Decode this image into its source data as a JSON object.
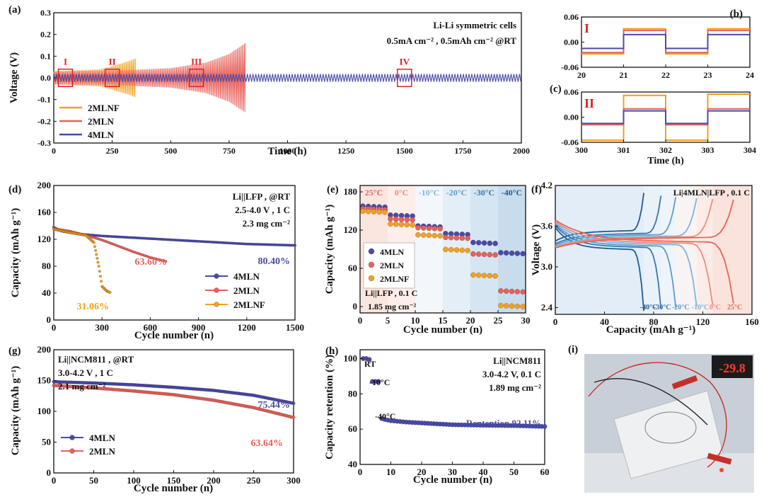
{
  "colors": {
    "mln4": "#4a4aa8",
    "mln2": "#e8605a",
    "mlnf": "#f3a020",
    "box": "#e02020",
    "t25": "#e86458",
    "t0": "#ef8a78",
    "tm10": "#7fb4dc",
    "tm20": "#5b9ccb",
    "tm30": "#3877ad",
    "tm40": "#1f5c92"
  },
  "panels": {
    "a": {
      "tag": "(a)",
      "annotation1": "Li-Li symmetric cells",
      "annotation2": "0.5mA cm⁻² ,  0.5mAh cm⁻² @RT",
      "boxes": [
        "I",
        "II",
        "III",
        "IV"
      ],
      "legend": [
        "2MLNF",
        "2MLN",
        "4MLN"
      ],
      "xlabel": "Time (h)",
      "ylabel": "Voltage (V)",
      "xticks": [
        "0",
        "250",
        "500",
        "750",
        "1000",
        "1250",
        "1500",
        "1750",
        "2000"
      ],
      "yticks": [
        "0.3",
        "0.2",
        "0.1",
        "0.0",
        "-0.1",
        "-0.2",
        "-0.3"
      ]
    },
    "b": {
      "tag": "(b)",
      "roman": "I",
      "xticks": [
        "20",
        "21",
        "22",
        "23",
        "24"
      ],
      "yticks": [
        "0.06",
        "0.00",
        "-0.06"
      ]
    },
    "c": {
      "tag": "(c)",
      "roman": "II",
      "xticks": [
        "300",
        "301",
        "302",
        "303",
        "304"
      ],
      "yticks": [
        "0.06",
        "0.00",
        "-0.06"
      ],
      "xlabel": "Time (h)"
    },
    "d": {
      "tag": "(d)",
      "annotation1": "Li||LFP , @RT",
      "annotation2": "2.5-4.0 V , 1 C",
      "annotation3": "2.3 mg cm⁻²",
      "ret_4mln": "80.40%",
      "ret_2mln": "63.60%",
      "ret_2mlnf": "31.06%",
      "legend": [
        "4MLN",
        "2MLN",
        "2MLNF"
      ],
      "xlabel": "Cycle number (n)",
      "ylabel": "Capacity (mAh g⁻¹)",
      "xticks": [
        "0",
        "300",
        "600",
        "900",
        "1200",
        "1500"
      ],
      "yticks": [
        "200",
        "160",
        "120",
        "80",
        "40",
        "0"
      ]
    },
    "e": {
      "tag": "(e)",
      "temps": [
        "25°C",
        "0°C",
        "-10°C",
        "-20°C",
        "-30°C",
        "-40°C"
      ],
      "legend": [
        "4MLN",
        "2MLN",
        "2MLNF"
      ],
      "annotation1": "Li||LFP , 0.1 C",
      "annotation2": "1.85 mg cm⁻²",
      "xlabel": "Cycle number (n)",
      "ylabel": "Capacity (mAh g⁻¹)",
      "xticks": [
        "0",
        "5",
        "10",
        "15",
        "20",
        "25",
        "30"
      ],
      "yticks": [
        "180",
        "120",
        "60",
        "0"
      ]
    },
    "f": {
      "tag": "(f)",
      "annotation": "Li|4MLN|LFP , 0.1 C",
      "temps": [
        "-40°C",
        "-30°C",
        "-20°C",
        "-10°C",
        "0°C",
        "25°C"
      ],
      "xlabel": "Capacity (mAh g⁻¹)",
      "ylabel": "Voltage (V)",
      "xticks": [
        "0",
        "40",
        "80",
        "120",
        "160"
      ],
      "yticks": [
        "4.2",
        "3.6",
        "3.0",
        "2.4"
      ]
    },
    "g": {
      "tag": "(g)",
      "annotation1": "Li||NCM811 , @RT",
      "annotation2": "3.0-4.2 V , 1 C",
      "annotation3": "2.1 mg cm⁻²",
      "ret_4mln": "75.44%",
      "ret_2mln": "63.64%",
      "legend": [
        "4MLN",
        "2MLN"
      ],
      "xlabel": "Cycle number (n)",
      "ylabel": "Capacity (mAh g⁻¹)",
      "xticks": [
        "0",
        "50",
        "100",
        "150",
        "200",
        "250",
        "300"
      ],
      "yticks": [
        "200",
        "150",
        "100",
        "50",
        "0"
      ]
    },
    "h": {
      "tag": "(h)",
      "annotation1": "Li||NCM811",
      "annotation2": "3.0-4.2 V, 0.1 C",
      "annotation3": "1.89 mg cm⁻²",
      "temp_rt": "RT",
      "temp_m10": "-10°C",
      "temp_m40": "-40°C",
      "retention": "Rentention 92.11%",
      "xlabel": "Cycle number (n)",
      "ylabel": "Capacity retention (%)",
      "xticks": [
        "0",
        "10",
        "20",
        "30",
        "40",
        "50",
        "60"
      ],
      "yticks": [
        "100",
        "80",
        "60",
        "40"
      ]
    },
    "i": {
      "tag": "(i)",
      "display": "-29.8"
    }
  },
  "chart_data": [
    {
      "panel": "a",
      "type": "line",
      "xlabel": "Time (h)",
      "ylabel": "Voltage (V)",
      "xlim": [
        0,
        2000
      ],
      "ylim": [
        -0.3,
        0.3
      ],
      "series": [
        {
          "name": "4MLN",
          "x": [
            0,
            2000
          ],
          "amplitude": [
            0.018,
            0.018
          ]
        },
        {
          "name": "2MLN",
          "x": [
            0,
            300,
            500,
            650,
            750,
            820
          ],
          "amplitude": [
            0.03,
            0.035,
            0.045,
            0.07,
            0.11,
            0.16
          ]
        },
        {
          "name": "2MLNF",
          "x": [
            0,
            200,
            300,
            350
          ],
          "amplitude": [
            0.03,
            0.04,
            0.07,
            0.09
          ]
        }
      ]
    },
    {
      "panel": "b",
      "type": "line",
      "xlim": [
        20,
        24
      ],
      "ylim": [
        -0.06,
        0.06
      ],
      "series": [
        {
          "name": "4MLN",
          "x": [
            20,
            21,
            21,
            22,
            22,
            23,
            23,
            24
          ],
          "y": [
            -0.015,
            -0.015,
            0.018,
            0.018,
            -0.015,
            -0.015,
            0.018,
            0.018
          ]
        },
        {
          "name": "2MLN",
          "x": [
            20,
            21,
            21,
            22,
            22,
            23,
            23,
            24
          ],
          "y": [
            -0.025,
            -0.025,
            0.028,
            0.028,
            -0.025,
            -0.025,
            0.028,
            0.028
          ]
        },
        {
          "name": "2MLNF",
          "x": [
            20,
            21,
            21,
            22,
            22,
            23,
            23,
            24
          ],
          "y": [
            -0.028,
            -0.028,
            0.032,
            0.032,
            -0.028,
            -0.028,
            0.032,
            0.032
          ]
        }
      ]
    },
    {
      "panel": "c",
      "type": "line",
      "xlim": [
        300,
        304
      ],
      "ylim": [
        -0.06,
        0.06
      ],
      "series": [
        {
          "name": "4MLN",
          "x": [
            300,
            301,
            301,
            302,
            302,
            303,
            303,
            304
          ],
          "y": [
            -0.015,
            -0.015,
            0.015,
            0.015,
            -0.015,
            -0.015,
            0.015,
            0.015
          ]
        },
        {
          "name": "2MLN",
          "x": [
            300,
            301,
            301,
            302,
            302,
            303,
            303,
            304
          ],
          "y": [
            -0.018,
            -0.018,
            0.02,
            0.02,
            -0.018,
            -0.018,
            0.02,
            0.02
          ]
        },
        {
          "name": "2MLNF",
          "x": [
            300,
            301,
            301,
            302,
            302,
            303,
            303,
            304
          ],
          "y": [
            -0.055,
            -0.055,
            0.052,
            0.052,
            -0.055,
            -0.055,
            0.055,
            0.055
          ]
        }
      ]
    },
    {
      "panel": "d",
      "type": "scatter",
      "xlabel": "Cycle number (n)",
      "ylabel": "Capacity (mAh g⁻¹)",
      "xlim": [
        0,
        1500
      ],
      "ylim": [
        0,
        200
      ],
      "series": [
        {
          "name": "4MLN",
          "x": [
            0,
            50,
            150,
            300,
            450,
            600,
            750,
            900,
            1050,
            1200,
            1350,
            1500
          ],
          "y": [
            138,
            132,
            128,
            125,
            123,
            121,
            119,
            117,
            115,
            113,
            112,
            111
          ]
        },
        {
          "name": "2MLN",
          "x": [
            0,
            100,
            200,
            300,
            400,
            500,
            600,
            700
          ],
          "y": [
            136,
            132,
            126,
            119,
            110,
            101,
            93,
            87
          ]
        },
        {
          "name": "2MLNF",
          "x": [
            0,
            100,
            200,
            250,
            280,
            300,
            330,
            350
          ],
          "y": [
            135,
            130,
            126,
            115,
            80,
            50,
            43,
            41
          ]
        }
      ]
    },
    {
      "panel": "e",
      "type": "scatter",
      "xlabel": "Cycle number (n)",
      "ylabel": "Capacity (mAh g⁻¹)",
      "xlim": [
        0,
        30
      ],
      "ylim": [
        -10,
        190
      ],
      "categories": [
        "25°C",
        "0°C",
        "-10°C",
        "-20°C",
        "-30°C",
        "-40°C"
      ],
      "series": [
        {
          "name": "4MLN",
          "values": [
            158,
            144,
            127,
            115,
            101,
            85
          ]
        },
        {
          "name": "2MLN",
          "values": [
            154,
            138,
            124,
            109,
            83,
            25
          ]
        },
        {
          "name": "2MLNF",
          "values": [
            150,
            130,
            113,
            90,
            50,
            2
          ]
        }
      ]
    },
    {
      "panel": "f",
      "type": "line",
      "xlabel": "Capacity (mAh g⁻¹)",
      "ylabel": "Voltage (V)",
      "xlim": [
        0,
        160
      ],
      "ylim": [
        2.3,
        4.2
      ],
      "series": [
        {
          "name": "-40°C",
          "capacity": 72
        },
        {
          "name": "-30°C",
          "capacity": 86
        },
        {
          "name": "-20°C",
          "capacity": 98
        },
        {
          "name": "-10°C",
          "capacity": 115
        },
        {
          "name": "0°C",
          "capacity": 128
        },
        {
          "name": "25°C",
          "capacity": 145
        }
      ]
    },
    {
      "panel": "g",
      "type": "scatter",
      "xlabel": "Cycle number (n)",
      "ylabel": "Capacity (mAh g⁻¹)",
      "xlim": [
        0,
        300
      ],
      "ylim": [
        0,
        200
      ],
      "series": [
        {
          "name": "4MLN",
          "x": [
            0,
            50,
            100,
            150,
            200,
            250,
            300
          ],
          "y": [
            148,
            146,
            143,
            139,
            134,
            126,
            113
          ]
        },
        {
          "name": "2MLN",
          "x": [
            0,
            50,
            100,
            150,
            200,
            250,
            300
          ],
          "y": [
            142,
            138,
            133,
            127,
            118,
            106,
            90
          ]
        }
      ]
    },
    {
      "panel": "h",
      "type": "scatter",
      "xlabel": "Cycle number (n)",
      "ylabel": "Capacity retention (%)",
      "xlim": [
        0,
        60
      ],
      "ylim": [
        40,
        105
      ],
      "series": [
        {
          "name": "",
          "x": [
            1,
            2,
            3,
            4,
            5,
            6,
            7,
            8,
            10,
            15,
            20,
            30,
            40,
            50,
            60
          ],
          "y": [
            100,
            100,
            99.5,
            87,
            87,
            87,
            66,
            65.5,
            64.8,
            64,
            63.5,
            62.5,
            62.2,
            62,
            61.5
          ]
        }
      ]
    }
  ]
}
